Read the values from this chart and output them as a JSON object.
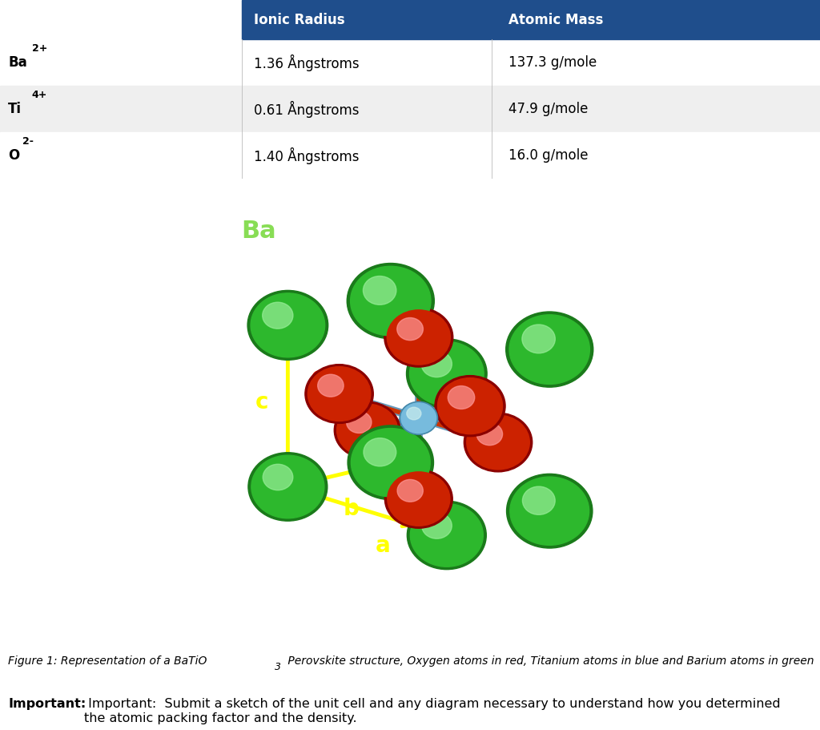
{
  "table_header_bg": "#1F4E8C",
  "table_header_text_color": "#FFFFFF",
  "table_row1_bg": "#FFFFFF",
  "table_row2_bg": "#EFEFEF",
  "table_row3_bg": "#FFFFFF",
  "col_labels": [
    "",
    "Ionic Radius",
    "Atomic Mass"
  ],
  "rows": [
    {
      "ion_main": "Ba",
      "ion_sup": "2+",
      "ionic_radius": "1.36 Ångstroms",
      "atomic_mass": "137.3 g/mole"
    },
    {
      "ion_main": "Ti",
      "ion_sup": "4+",
      "ionic_radius": "0.61 Ångstroms",
      "atomic_mass": "47.9 g/mole"
    },
    {
      "ion_main": "O",
      "ion_sup": "2-",
      "ionic_radius": "1.40 Ångstroms",
      "atomic_mass": "16.0 g/mole"
    }
  ],
  "figure_caption_italic": "Figure 1: Representation of a BaTiO",
  "figure_caption_sub": "3",
  "figure_caption_rest": " Perovskite structure, Oxygen atoms in red, Titanium atoms in blue and Barium atoms in green",
  "important_bold": "Important:",
  "important_normal": " Important:  Submit a sketch of the unit cell and any diagram necessary to understand how you determined\nthe atomic packing factor and the density.",
  "bg_color": "#FFFFFF",
  "ba_color_dark": "#1A7A1A",
  "ba_color_mid": "#2DB82D",
  "ba_color_light": "#99EE99",
  "o_color_dark": "#8B0000",
  "o_color_mid": "#CC2200",
  "o_color_light": "#FF9999",
  "ti_color_dark": "#4488AA",
  "ti_color_mid": "#77BBDD",
  "ti_color_light": "#CCEEEE",
  "header_fontsize": 12,
  "row_fontsize": 12,
  "caption_fontsize": 10,
  "important_fontsize": 11.5
}
